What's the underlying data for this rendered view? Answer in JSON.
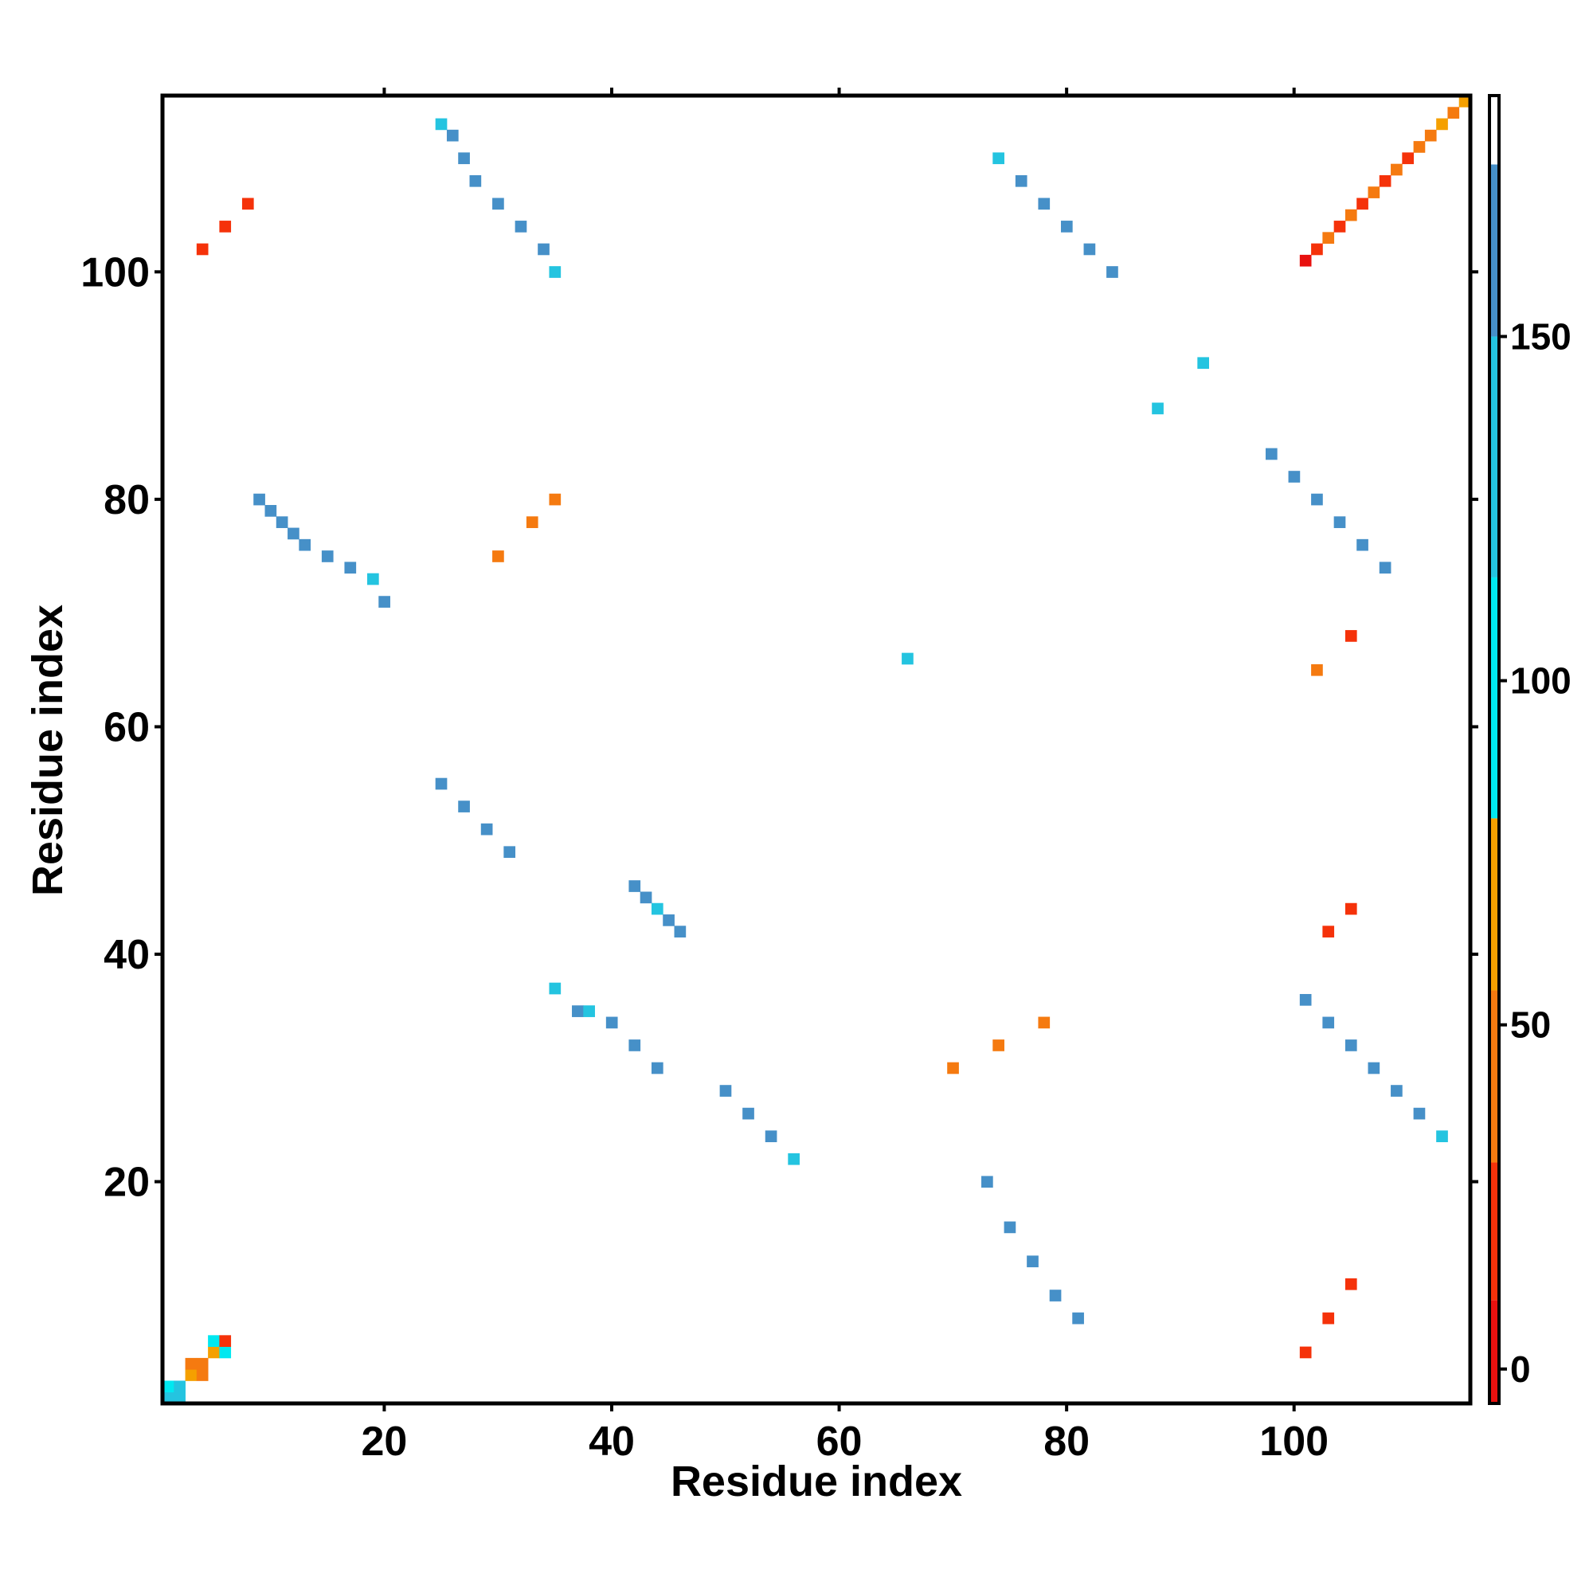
{
  "chart_data": {
    "type": "heatmap",
    "title": "",
    "xlabel": "Residue index",
    "ylabel": "Residue index",
    "xlim": [
      1,
      115
    ],
    "ylim": [
      1,
      115
    ],
    "x_ticks": [
      "20",
      "40",
      "60",
      "80",
      "100"
    ],
    "y_ticks": [
      "20",
      "40",
      "60",
      "80",
      "100"
    ],
    "colorbar": {
      "range": [
        -5,
        185
      ],
      "ticks": [
        "0",
        "50",
        "100",
        "150"
      ],
      "bands": [
        {
          "from": -5,
          "to": 10,
          "color": "#e8110f"
        },
        {
          "from": 10,
          "to": 30,
          "color": "#f5320a"
        },
        {
          "from": 30,
          "to": 55,
          "color": "#f57a10"
        },
        {
          "from": 55,
          "to": 80,
          "color": "#f5a000"
        },
        {
          "from": 80,
          "to": 115,
          "color": "#00e8f0"
        },
        {
          "from": 115,
          "to": 150,
          "color": "#24c4e0"
        },
        {
          "from": 150,
          "to": 175,
          "color": "#4690c8"
        },
        {
          "from": 175,
          "to": 185,
          "color": "#ffffff"
        }
      ]
    },
    "grid": false,
    "series": [
      {
        "values": [
          [
            1,
            1,
            120
          ],
          [
            1,
            2,
            110
          ],
          [
            2,
            1,
            115
          ],
          [
            2,
            2,
            140
          ],
          [
            3,
            3,
            60
          ],
          [
            3,
            4,
            40
          ],
          [
            4,
            3,
            50
          ],
          [
            4,
            4,
            30
          ],
          [
            5,
            5,
            55
          ],
          [
            5,
            6,
            110
          ],
          [
            6,
            5,
            100
          ],
          [
            6,
            6,
            20
          ],
          [
            101,
            101,
            5
          ],
          [
            102,
            102,
            25
          ],
          [
            103,
            103,
            45
          ],
          [
            104,
            104,
            15
          ],
          [
            105,
            105,
            35
          ],
          [
            106,
            106,
            20
          ],
          [
            107,
            107,
            30
          ],
          [
            108,
            108,
            10
          ],
          [
            109,
            109,
            50
          ],
          [
            110,
            110,
            25
          ],
          [
            111,
            111,
            45
          ],
          [
            112,
            112,
            35
          ],
          [
            113,
            113,
            55
          ],
          [
            114,
            114,
            40
          ],
          [
            115,
            115,
            60
          ],
          [
            44,
            44,
            120
          ],
          [
            43,
            45,
            150
          ],
          [
            42,
            46,
            155
          ],
          [
            45,
            43,
            150
          ],
          [
            46,
            42,
            150
          ],
          [
            66,
            66,
            120
          ],
          [
            88,
            88,
            140
          ],
          [
            92,
            92,
            130
          ],
          [
            35,
            37,
            145
          ],
          [
            37,
            35,
            150
          ],
          [
            9,
            80,
            160
          ],
          [
            10,
            79,
            160
          ],
          [
            11,
            78,
            155
          ],
          [
            12,
            77,
            160
          ],
          [
            13,
            76,
            150
          ],
          [
            15,
            75,
            160
          ],
          [
            17,
            74,
            150
          ],
          [
            19,
            73,
            130
          ],
          [
            20,
            71,
            150
          ],
          [
            25,
            113,
            120
          ],
          [
            26,
            112,
            150
          ],
          [
            27,
            110,
            160
          ],
          [
            28,
            108,
            160
          ],
          [
            30,
            106,
            155
          ],
          [
            32,
            104,
            160
          ],
          [
            34,
            102,
            160
          ],
          [
            35,
            100,
            130
          ],
          [
            74,
            110,
            120
          ],
          [
            76,
            108,
            150
          ],
          [
            78,
            106,
            160
          ],
          [
            80,
            104,
            155
          ],
          [
            82,
            102,
            160
          ],
          [
            84,
            100,
            160
          ],
          [
            98,
            84,
            150
          ],
          [
            100,
            82,
            160
          ],
          [
            102,
            80,
            160
          ],
          [
            104,
            78,
            155
          ],
          [
            106,
            76,
            160
          ],
          [
            108,
            74,
            150
          ],
          [
            25,
            55,
            150
          ],
          [
            27,
            53,
            160
          ],
          [
            29,
            51,
            160
          ],
          [
            31,
            49,
            150
          ],
          [
            38,
            35,
            140
          ],
          [
            40,
            34,
            150
          ],
          [
            42,
            32,
            160
          ],
          [
            44,
            30,
            150
          ],
          [
            50,
            28,
            150
          ],
          [
            52,
            26,
            160
          ],
          [
            54,
            24,
            150
          ],
          [
            56,
            22,
            140
          ],
          [
            73,
            20,
            150
          ],
          [
            75,
            16,
            160
          ],
          [
            77,
            13,
            160
          ],
          [
            79,
            10,
            155
          ],
          [
            81,
            8,
            160
          ],
          [
            101,
            36,
            150
          ],
          [
            103,
            34,
            160
          ],
          [
            105,
            32,
            160
          ],
          [
            107,
            30,
            150
          ],
          [
            109,
            28,
            160
          ],
          [
            111,
            26,
            150
          ],
          [
            113,
            24,
            140
          ],
          [
            4,
            102,
            10
          ],
          [
            6,
            104,
            15
          ],
          [
            8,
            106,
            20
          ],
          [
            70,
            30,
            40
          ],
          [
            74,
            32,
            45
          ],
          [
            78,
            34,
            40
          ],
          [
            30,
            75,
            40
          ],
          [
            33,
            78,
            45
          ],
          [
            35,
            80,
            40
          ],
          [
            101,
            5,
            10
          ],
          [
            103,
            8,
            15
          ],
          [
            105,
            11,
            20
          ],
          [
            103,
            42,
            10
          ],
          [
            105,
            44,
            15
          ],
          [
            102,
            65,
            30
          ],
          [
            105,
            68,
            25
          ]
        ]
      }
    ]
  }
}
